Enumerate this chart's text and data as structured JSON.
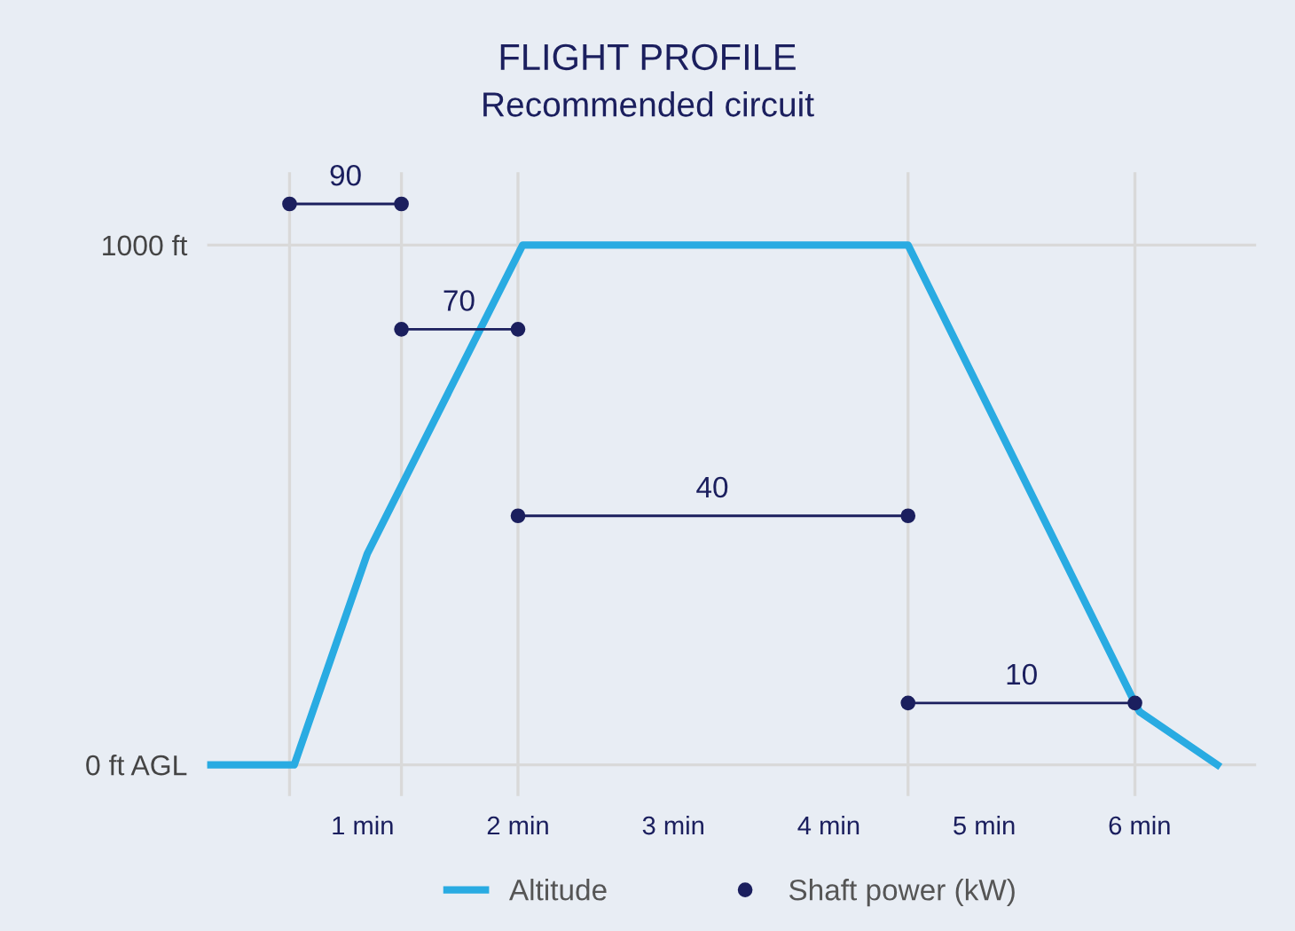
{
  "chart_data": {
    "type": "line",
    "title": "FLIGHT PROFILE",
    "subtitle": "Recommended circuit",
    "xlim": [
      0,
      6.75
    ],
    "ylim": [
      -60,
      1140
    ],
    "xticks": [
      {
        "value": 1,
        "label": "1 min"
      },
      {
        "value": 2,
        "label": "2 min"
      },
      {
        "value": 3,
        "label": "3 min"
      },
      {
        "value": 4,
        "label": "4 min"
      },
      {
        "value": 5,
        "label": "5 min"
      },
      {
        "value": 6,
        "label": "6 min"
      }
    ],
    "yticks": [
      {
        "value": 0,
        "label": "0 ft AGL"
      },
      {
        "value": 1000,
        "label": "1000 ft"
      }
    ],
    "grid": "y",
    "legend": "bottom",
    "ref_lines": [
      {
        "axis": "x",
        "value": 0.53,
        "color": "#d9d9d9"
      },
      {
        "axis": "x",
        "value": 1.25,
        "color": "#d9d9d9"
      },
      {
        "axis": "x",
        "value": 2.0,
        "color": "#d9d9d9"
      },
      {
        "axis": "x",
        "value": 4.51,
        "color": "#d9d9d9"
      },
      {
        "axis": "x",
        "value": 5.97,
        "color": "#d9d9d9"
      }
    ],
    "series": [
      {
        "name": "Altitude",
        "color": "#29abe2",
        "marker": "none",
        "x": [
          0.02,
          0.56,
          1.03,
          2.03,
          4.51,
          5.97,
          6.0,
          6.5
        ],
        "values": [
          0,
          0,
          406,
          1000,
          1000,
          119,
          102,
          0
        ]
      },
      {
        "name": "Shaft power (kW)",
        "color": "#1b1f5e",
        "marker": "circle",
        "x": [
          0.53,
          1.25
        ],
        "values": [
          1079,
          1079
        ]
      },
      {
        "color": "#1b1f5e",
        "marker": "circle",
        "x": [
          1.25,
          2.0
        ],
        "values": [
          838,
          838
        ]
      },
      {
        "color": "#1b1f5e",
        "marker": "circle",
        "x": [
          2.0,
          4.51
        ],
        "values": [
          479,
          479
        ]
      },
      {
        "color": "#1b1f5e",
        "marker": "circle",
        "x": [
          4.51,
          5.97
        ],
        "values": [
          119,
          119
        ]
      }
    ],
    "annotations": [
      {
        "text": "90",
        "x": 0.89,
        "y": 1079
      },
      {
        "text": "70",
        "x": 1.62,
        "y": 838
      },
      {
        "text": "40",
        "x": 3.25,
        "y": 479
      },
      {
        "text": "10",
        "x": 5.24,
        "y": 119
      }
    ]
  }
}
